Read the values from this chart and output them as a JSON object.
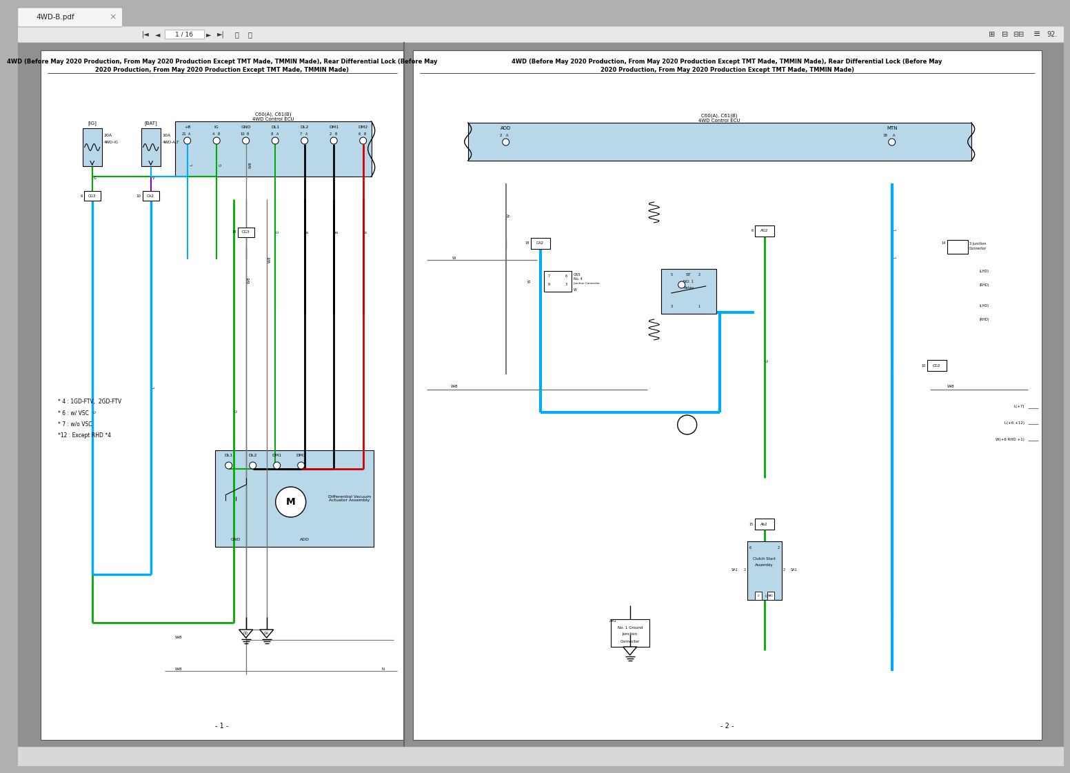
{
  "title_tab": "4WD-B.pdf",
  "bg_outer": "#b0b0b0",
  "bg_content": "#909090",
  "page_bg": "#ffffff",
  "tab_bg": "#f5f5f5",
  "toolbar_bg": "#e8e8e8",
  "statusbar_bg": "#d8d8d8",
  "page1_title_line1": "4WD (Before May 2020 Production, From May 2020 Production Except TMT Made, TMMIN Made), Rear Differential Lock (Before May",
  "page1_title_line2": "2020 Production, From May 2020 Production Except TMT Made, TMMIN Made)",
  "page2_title_line1": "4WD (Before May 2020 Production, From May 2020 Production Except TMT Made, TMMIN Made), Rear Differential Lock (Before May",
  "page2_title_line2": "2020 Production, From May 2020 Production Except TMT Made, TMMIN Made)",
  "page1_label": "- 1 -",
  "page2_label": "- 2 -",
  "page_num_display": "1 / 16",
  "page_num_right": "92.",
  "ecu_fill": "#b8d8ea",
  "notes_page1": [
    "* 4 : 1GD-FTV,  2GD-FTV",
    "* 6 : w/ VSC",
    "* 7 : w/o VSC",
    "*12 : Except RHD *4"
  ],
  "color_blue": "#00aaff",
  "color_green": "#00aa00",
  "color_purple": "#8800aa",
  "color_black": "#000000",
  "color_red": "#cc0000",
  "color_gray": "#777777",
  "color_darkgray": "#444444"
}
